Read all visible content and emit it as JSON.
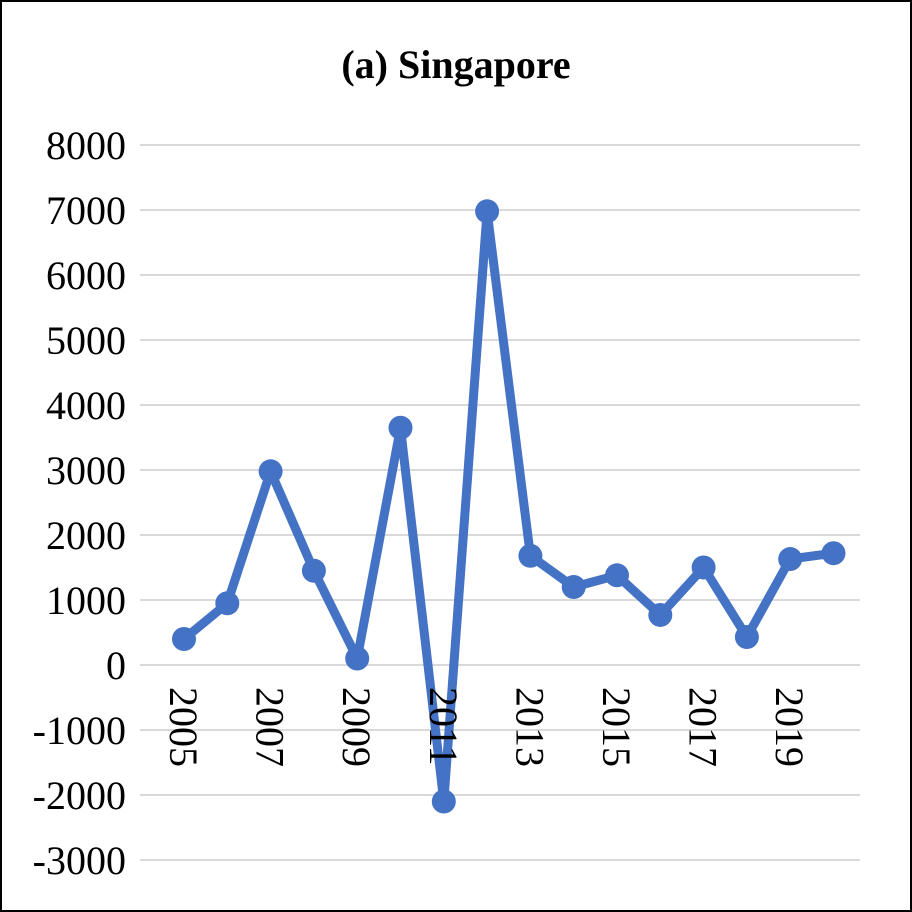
{
  "chart_data": {
    "type": "line",
    "title": "(a) Singapore",
    "xlabel": "",
    "ylabel": "",
    "x": [
      2005,
      2006,
      2007,
      2008,
      2009,
      2010,
      2011,
      2012,
      2013,
      2014,
      2015,
      2016,
      2017,
      2018,
      2019,
      2020
    ],
    "x_tick_labels": [
      "2005",
      "2007",
      "2009",
      "2011",
      "2013",
      "2015",
      "2017",
      "2019"
    ],
    "series": [
      {
        "values": [
          400,
          950,
          2980,
          1450,
          100,
          3650,
          -2100,
          6980,
          1680,
          1200,
          1380,
          770,
          1500,
          430,
          1630,
          1720
        ],
        "color": "#4472c4"
      }
    ],
    "ylim": [
      -3000,
      8000
    ],
    "y_ticks": [
      -3000,
      -2000,
      -1000,
      0,
      1000,
      2000,
      3000,
      4000,
      5000,
      6000,
      7000,
      8000
    ],
    "grid": true,
    "legend": "none"
  }
}
